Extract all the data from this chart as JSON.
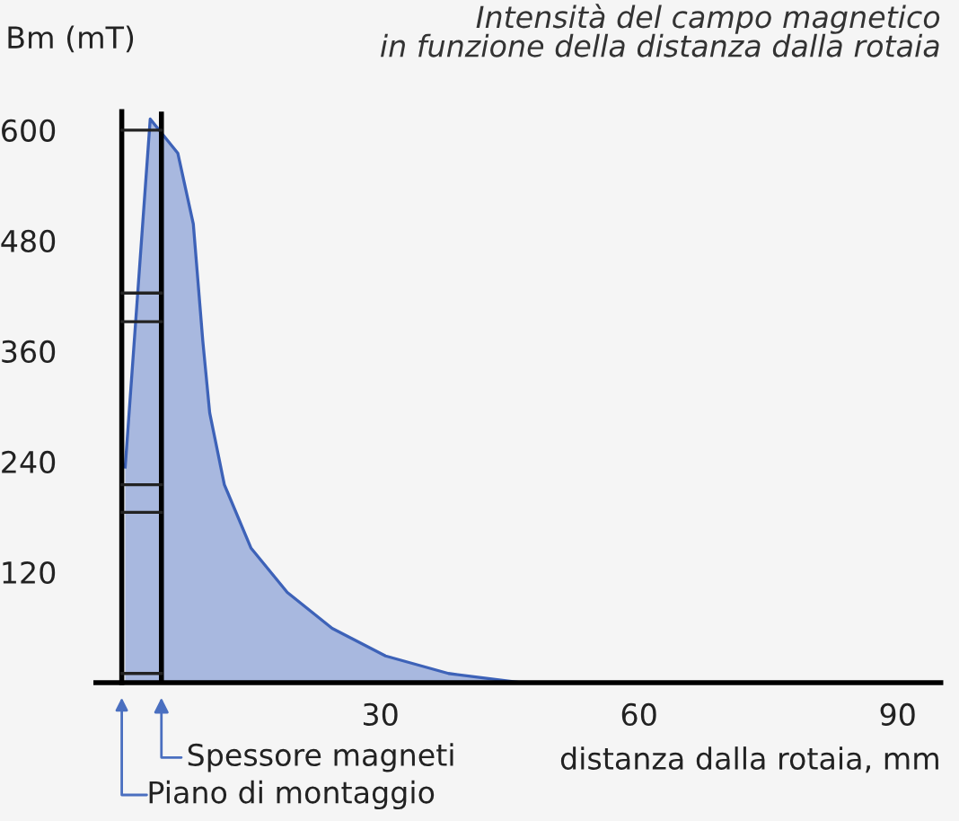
{
  "chart_data": {
    "type": "area",
    "title": "Intensità del campo magnetico\nin funzione della distanza dalla rotaia",
    "xlabel": "distanza dalla rotaia, mm",
    "ylabel": "Bm (mT)",
    "series": [
      {
        "color": "#3d62b8",
        "x": [
          0.4,
          3.3,
          6.5,
          8.3,
          9.4,
          10.2,
          11.9,
          15,
          19.2,
          24.4,
          30.6,
          37.9,
          46.3
        ],
        "values": [
          234,
          612,
          575,
          498,
          371,
          293,
          215,
          146,
          98,
          59,
          29,
          10,
          0
        ]
      }
    ],
    "xlim": [
      -3,
      95
    ],
    "ylim": [
      0,
      620
    ],
    "xticks": [
      30,
      60,
      90
    ],
    "yticks": [
      120,
      240,
      360,
      480,
      600
    ],
    "ref_lines": [
      {
        "axis": "x",
        "value": 4.6,
        "label": null,
        "color": "#000000"
      }
    ],
    "annotations": [
      {
        "text": "Spessore magneti",
        "x": 4.6,
        "y": 0
      },
      "Piano di montaggio"
    ],
    "grid": false,
    "legend": false
  }
}
